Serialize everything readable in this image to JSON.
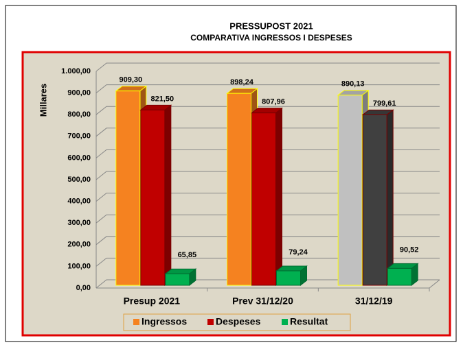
{
  "chart_data": {
    "type": "bar3d",
    "title": "PRESSUPOST 2021",
    "subtitle": "COMPARATIVA  INGRESSOS  I DESPESES",
    "y_label": "Millares",
    "categories": [
      "Presup 2021",
      "Prev 31/12/20",
      "31/12/19"
    ],
    "series": [
      {
        "name": "Ingressos",
        "color": "#f58220",
        "edge_color": "#ffff00",
        "point_colors": [
          "#f58220",
          "#f58220",
          "#c0c0c0"
        ],
        "values": [
          909.3,
          898.24,
          890.13
        ],
        "value_labels": [
          "909,30",
          "898,24",
          "890,13"
        ]
      },
      {
        "name": "Despeses",
        "color": "#c00000",
        "edge_color": "#7a0000",
        "point_colors": [
          "#c00000",
          "#c00000",
          "#404040"
        ],
        "values": [
          821.5,
          807.96,
          799.61
        ],
        "value_labels": [
          "821,50",
          "807,96",
          "799,61"
        ]
      },
      {
        "name": "Resultat",
        "color": "#00b050",
        "edge_color": "#006b30",
        "point_colors": [
          "#00b050",
          "#00b050",
          "#00b050"
        ],
        "values": [
          65.85,
          79.24,
          90.52
        ],
        "value_labels": [
          "65,85",
          "79,24",
          "90,52"
        ]
      }
    ],
    "ylim": [
      0,
      1000
    ],
    "yticks": [
      {
        "value": 0,
        "label": "0,00"
      },
      {
        "value": 100,
        "label": "100,00"
      },
      {
        "value": 200,
        "label": "200,00"
      },
      {
        "value": 300,
        "label": "300,00"
      },
      {
        "value": 400,
        "label": "400,00"
      },
      {
        "value": 500,
        "label": "500,00"
      },
      {
        "value": 600,
        "label": "600,00"
      },
      {
        "value": 700,
        "label": "700,00"
      },
      {
        "value": 800,
        "label": "800,00"
      },
      {
        "value": 900,
        "label": "900,00"
      },
      {
        "value": 1000,
        "label": "1.000,00"
      }
    ],
    "grid": true
  }
}
